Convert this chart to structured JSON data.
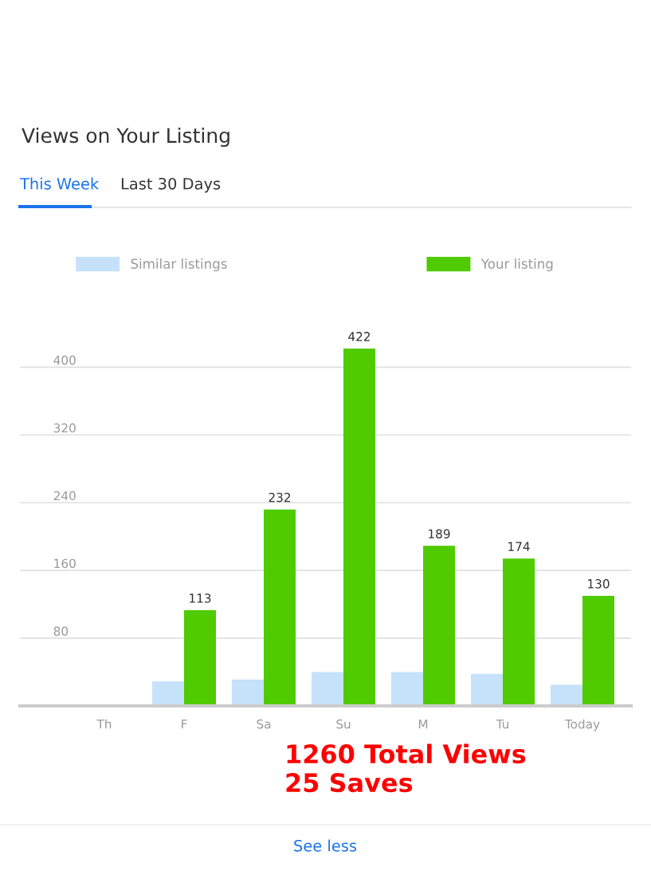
{
  "chart_data": {
    "type": "bar",
    "title": "Views on Your Listing",
    "categories": [
      "Th",
      "F",
      "Sa",
      "Su",
      "M",
      "Tu",
      "Today"
    ],
    "series": [
      {
        "name": "Similar listings",
        "color": "#c6e2fb",
        "values": [
          null,
          29,
          31,
          40,
          40,
          38,
          25
        ]
      },
      {
        "name": "Your listing",
        "color": "#4fcb00",
        "values": [
          null,
          113,
          232,
          422,
          189,
          174,
          130
        ],
        "value_labels": [
          null,
          "113",
          "232",
          "422",
          "189",
          "174",
          "130"
        ]
      }
    ],
    "ylim": [
      0,
      422
    ],
    "yticks": [
      80,
      160,
      240,
      320,
      400
    ],
    "grid": "y",
    "legend": "top",
    "annotations": [
      "This Week",
      "Last 30 Days",
      "1260 Total Views",
      "25 Saves",
      "See less"
    ]
  }
}
